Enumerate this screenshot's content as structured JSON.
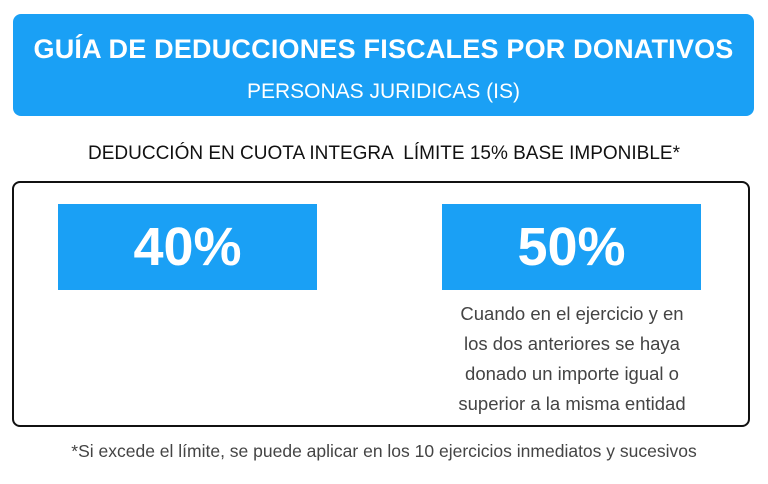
{
  "banner": {
    "title": "GUÍA DE DEDUCCIONES FISCALES POR DONATIVOS",
    "subtitle": "PERSONAS JURIDICAS (IS)"
  },
  "heading": "DEDUCCIÓN EN CUOTA INTEGRA  LÍMITE 15% BASE IMPONIBLE*",
  "rates": {
    "base": "40%",
    "increased": "50%",
    "condition_lines": [
      "Cuando en el ejercicio y en",
      "los dos anteriores se haya",
      "donado un importe igual o",
      "superior a la misma entidad"
    ]
  },
  "footnote": "*Si excede el límite, se puede aplicar en los 10 ejercicios inmediatos y sucesivos",
  "colors": {
    "accent": "#1aa0f5",
    "text": "#111111",
    "muted": "#444444"
  }
}
